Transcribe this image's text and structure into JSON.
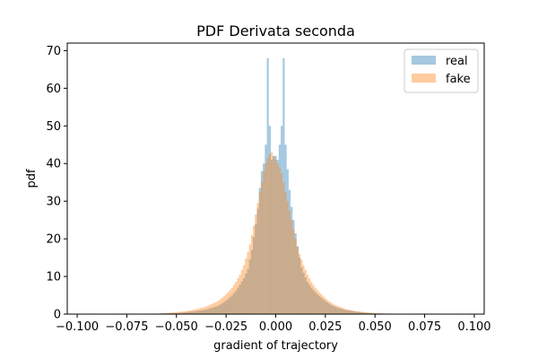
{
  "chart_data": {
    "type": "histogram",
    "title": "PDF Derivata seconda",
    "xlabel": "gradient of trajectory",
    "ylabel": "pdf",
    "xlim": [
      -0.105,
      0.105
    ],
    "ylim": [
      0,
      72
    ],
    "xticks": [
      -0.1,
      -0.075,
      -0.05,
      -0.025,
      0.0,
      0.025,
      0.05,
      0.075,
      0.1
    ],
    "xtick_labels": [
      "−0.100",
      "−0.075",
      "−0.050",
      "−0.025",
      "0.000",
      "0.025",
      "0.050",
      "0.075",
      "0.100"
    ],
    "yticks": [
      0,
      10,
      20,
      30,
      40,
      50,
      60,
      70
    ],
    "ytick_labels": [
      "0",
      "10",
      "20",
      "30",
      "40",
      "50",
      "60",
      "70"
    ],
    "grid": false,
    "legend_position": "top-right",
    "series": [
      {
        "name": "real",
        "color": "#1f77b4",
        "alpha": 0.4,
        "bin_width": 0.001,
        "bins": [
          [
            -0.06,
            0.1
          ],
          [
            -0.055,
            0.2
          ],
          [
            -0.05,
            0.3
          ],
          [
            -0.045,
            0.5
          ],
          [
            -0.04,
            0.8
          ],
          [
            -0.035,
            1.2
          ],
          [
            -0.03,
            2.0
          ],
          [
            -0.028,
            2.5
          ],
          [
            -0.026,
            3.2
          ],
          [
            -0.024,
            4.0
          ],
          [
            -0.022,
            5.0
          ],
          [
            -0.02,
            6.2
          ],
          [
            -0.018,
            7.8
          ],
          [
            -0.016,
            9.5
          ],
          [
            -0.014,
            12.0
          ],
          [
            -0.013,
            14.5
          ],
          [
            -0.012,
            17.0
          ],
          [
            -0.011,
            20.5
          ],
          [
            -0.01,
            24.0
          ],
          [
            -0.009,
            28.0
          ],
          [
            -0.008,
            33.5
          ],
          [
            -0.007,
            38.0
          ],
          [
            -0.006,
            40.0
          ],
          [
            -0.005,
            45.0
          ],
          [
            -0.004,
            68.0
          ],
          [
            -0.003,
            50.0
          ],
          [
            -0.002,
            41.0
          ],
          [
            -0.001,
            42.0
          ],
          [
            0.0,
            42.0
          ],
          [
            0.001,
            41.0
          ],
          [
            0.002,
            45.0
          ],
          [
            0.003,
            50.0
          ],
          [
            0.004,
            68.0
          ],
          [
            0.005,
            45.0
          ],
          [
            0.006,
            38.5
          ],
          [
            0.007,
            33.0
          ],
          [
            0.008,
            28.5
          ],
          [
            0.009,
            25.0
          ],
          [
            0.01,
            21.5
          ],
          [
            0.011,
            18.0
          ],
          [
            0.012,
            15.0
          ],
          [
            0.013,
            12.5
          ],
          [
            0.014,
            11.0
          ],
          [
            0.016,
            8.5
          ],
          [
            0.018,
            7.0
          ],
          [
            0.02,
            5.8
          ],
          [
            0.022,
            4.8
          ],
          [
            0.024,
            3.9
          ],
          [
            0.026,
            3.1
          ],
          [
            0.028,
            2.4
          ],
          [
            0.03,
            1.9
          ],
          [
            0.035,
            1.1
          ],
          [
            0.04,
            0.7
          ],
          [
            0.045,
            0.4
          ],
          [
            0.05,
            0.2
          ],
          [
            0.055,
            0.1
          ],
          [
            0.06,
            0.05
          ]
        ]
      },
      {
        "name": "fake",
        "color": "#ff7f0e",
        "alpha": 0.4,
        "bin_width": 0.001,
        "bins": [
          [
            -0.06,
            0.1
          ],
          [
            -0.055,
            0.3
          ],
          [
            -0.05,
            0.5
          ],
          [
            -0.045,
            0.8
          ],
          [
            -0.04,
            1.3
          ],
          [
            -0.035,
            2.0
          ],
          [
            -0.03,
            3.2
          ],
          [
            -0.028,
            3.9
          ],
          [
            -0.026,
            4.8
          ],
          [
            -0.024,
            5.8
          ],
          [
            -0.022,
            7.0
          ],
          [
            -0.02,
            8.6
          ],
          [
            -0.018,
            10.5
          ],
          [
            -0.016,
            13.0
          ],
          [
            -0.014,
            16.5
          ],
          [
            -0.013,
            18.5
          ],
          [
            -0.012,
            21.0
          ],
          [
            -0.011,
            23.5
          ],
          [
            -0.01,
            26.5
          ],
          [
            -0.009,
            29.5
          ],
          [
            -0.008,
            32.5
          ],
          [
            -0.007,
            35.0
          ],
          [
            -0.006,
            38.0
          ],
          [
            -0.005,
            40.0
          ],
          [
            -0.004,
            41.5
          ],
          [
            -0.003,
            42.5
          ],
          [
            -0.002,
            43.0
          ],
          [
            -0.001,
            42.0
          ],
          [
            0.0,
            41.0
          ],
          [
            0.001,
            40.0
          ],
          [
            0.002,
            39.0
          ],
          [
            0.003,
            37.5
          ],
          [
            0.004,
            35.0
          ],
          [
            0.005,
            32.5
          ],
          [
            0.006,
            30.0
          ],
          [
            0.007,
            27.5
          ],
          [
            0.008,
            25.0
          ],
          [
            0.009,
            22.5
          ],
          [
            0.01,
            20.0
          ],
          [
            0.011,
            18.0
          ],
          [
            0.012,
            16.0
          ],
          [
            0.013,
            14.5
          ],
          [
            0.014,
            13.0
          ],
          [
            0.016,
            10.5
          ],
          [
            0.018,
            8.5
          ],
          [
            0.02,
            7.0
          ],
          [
            0.022,
            5.8
          ],
          [
            0.024,
            4.7
          ],
          [
            0.026,
            3.8
          ],
          [
            0.028,
            3.0
          ],
          [
            0.03,
            2.4
          ],
          [
            0.035,
            1.4
          ],
          [
            0.04,
            0.8
          ],
          [
            0.045,
            0.5
          ],
          [
            0.05,
            0.3
          ],
          [
            0.055,
            0.15
          ],
          [
            0.06,
            0.1
          ]
        ]
      }
    ]
  }
}
